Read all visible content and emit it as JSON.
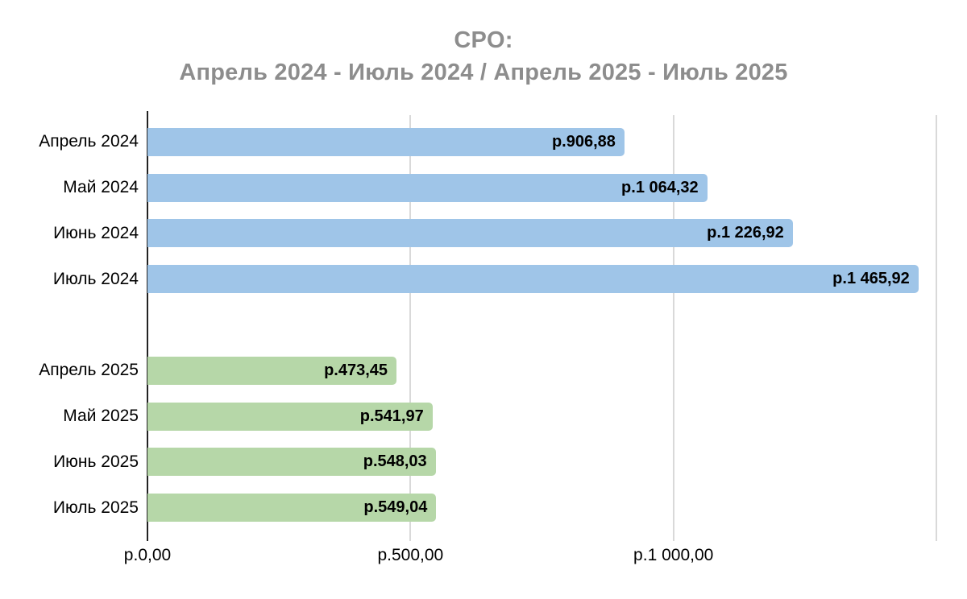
{
  "chart_data": {
    "type": "bar",
    "orientation": "horizontal",
    "title": {
      "line1": "CPO:",
      "line2": "Апрель 2024 - Июль 2024 / Апрель 2025 - Июль 2025",
      "color": "#8d8d8d"
    },
    "rows": [
      {
        "label": "Апрель 2024",
        "value": 906.88,
        "value_label": "р.906,88",
        "series": "2024"
      },
      {
        "label": "Май 2024",
        "value": 1064.32,
        "value_label": "р.1 064,32",
        "series": "2024"
      },
      {
        "label": "Июнь 2024",
        "value": 1226.92,
        "value_label": "р.1 226,92",
        "series": "2024"
      },
      {
        "label": "Июль 2024",
        "value": 1465.92,
        "value_label": "р.1 465,92",
        "series": "2024"
      },
      {
        "label": "",
        "value": null,
        "value_label": "",
        "series": "spacer"
      },
      {
        "label": "Апрель 2025",
        "value": 473.45,
        "value_label": "р.473,45",
        "series": "2025"
      },
      {
        "label": "Май 2025",
        "value": 541.97,
        "value_label": "р.541,97",
        "series": "2025"
      },
      {
        "label": "Июнь 2025",
        "value": 548.03,
        "value_label": "р.548,03",
        "series": "2025"
      },
      {
        "label": "Июль 2025",
        "value": 549.04,
        "value_label": "р.549,04",
        "series": "2025"
      }
    ],
    "series_colors": {
      "2024": "#9fc5e8",
      "2025": "#b6d7a8"
    },
    "x_axis": {
      "min": 0,
      "max": 1532,
      "ticks": [
        {
          "value": 0,
          "label": "р.0,00"
        },
        {
          "value": 500,
          "label": "р.500,00"
        },
        {
          "value": 1000,
          "label": "р.1 000,00"
        },
        {
          "value": 1500,
          "label": ""
        }
      ],
      "gridline_color": "#d9d9d9",
      "axis_color": "#222222"
    },
    "value_label_color": "#000000",
    "category_label_color": "#000000",
    "grid": true,
    "legend": "none"
  }
}
